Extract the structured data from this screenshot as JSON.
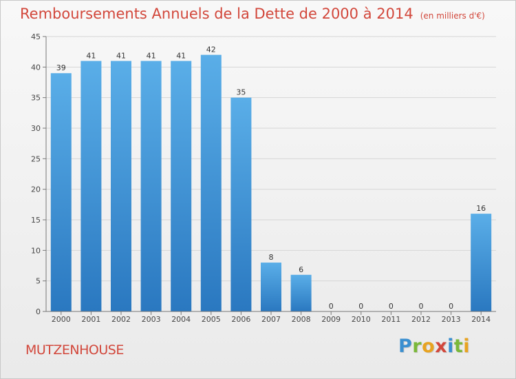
{
  "header": {
    "title": "Remboursements Annuels de la Dette de 2000 à 2014",
    "subtitle": "(en milliers d'€)"
  },
  "footer": {
    "commune": "MUTZENHOUSE",
    "logo_letters": [
      {
        "char": "P",
        "color": "#3a8fd0"
      },
      {
        "char": "r",
        "color": "#7ab83a"
      },
      {
        "char": "o",
        "color": "#e8a320"
      },
      {
        "char": "x",
        "color": "#d2473b"
      },
      {
        "char": "i",
        "color": "#3a8fd0"
      },
      {
        "char": "t",
        "color": "#7ab83a"
      },
      {
        "char": "i",
        "color": "#e8a320"
      }
    ]
  },
  "chart_data": {
    "type": "bar",
    "title": "Remboursements Annuels de la Dette de 2000 à 2014",
    "subtitle": "(en milliers d'€)",
    "categories": [
      "2000",
      "2001",
      "2002",
      "2003",
      "2004",
      "2005",
      "2006",
      "2007",
      "2008",
      "2009",
      "2010",
      "2011",
      "2012",
      "2013",
      "2014"
    ],
    "values": [
      39,
      41,
      41,
      41,
      41,
      42,
      35,
      8,
      6,
      0,
      0,
      0,
      0,
      0,
      16
    ],
    "ylim": [
      0,
      45
    ],
    "yticks": [
      0,
      5,
      10,
      15,
      20,
      25,
      30,
      35,
      40,
      45
    ],
    "grid": true,
    "bar_color": "#4a9fe0",
    "bar_color_dark": "#2a78c0"
  }
}
